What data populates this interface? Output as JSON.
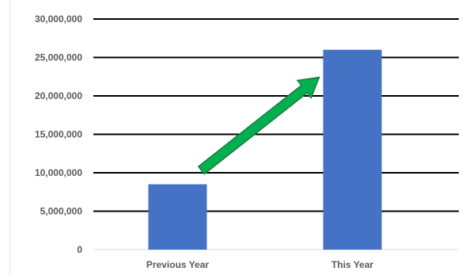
{
  "chart_data": {
    "type": "bar",
    "title": "",
    "xlabel": "",
    "ylabel": "",
    "categories": [
      "Previous Year",
      "This Year"
    ],
    "values": [
      8500000,
      26000000
    ],
    "ylim": [
      0,
      30000000
    ],
    "yticks": [
      "0",
      "5,000,000",
      "10,000,000",
      "15,000,000",
      "20,000,000",
      "25,000,000",
      "30,000,000"
    ],
    "ytick_values": [
      0,
      5000000,
      10000000,
      15000000,
      20000000,
      25000000,
      30000000
    ],
    "grid": true,
    "legend": "none",
    "annotations": [
      {
        "type": "arrow",
        "direction": "up-right",
        "from_category": "Previous Year",
        "to_category": "This Year",
        "color": "#00b050"
      }
    ],
    "colors": {
      "bar": "#4472c4",
      "grid": "#000000",
      "arrow_fill": "#00b050",
      "arrow_stroke": "#1e7a3c",
      "labels": "#595959"
    }
  }
}
